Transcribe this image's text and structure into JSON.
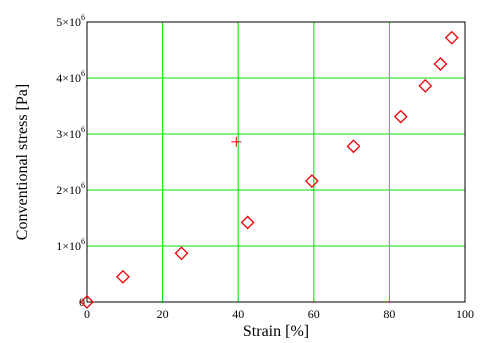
{
  "chart_data": {
    "type": "scatter",
    "title": "",
    "xlabel": "Strain [%]",
    "ylabel": "Conventional stress [Pa]",
    "xlim": [
      0,
      100
    ],
    "ylim": [
      0,
      5000000
    ],
    "x_ticks": [
      {
        "value": 0,
        "label": "0"
      },
      {
        "value": 20,
        "label": "20"
      },
      {
        "value": 40,
        "label": "40"
      },
      {
        "value": 60,
        "label": "60"
      },
      {
        "value": 80,
        "label": "80"
      },
      {
        "value": 100,
        "label": "100"
      }
    ],
    "y_ticks": [
      {
        "value": 0,
        "base": "0",
        "exp": ""
      },
      {
        "value": 1000000,
        "base": "1×10",
        "exp": "6"
      },
      {
        "value": 2000000,
        "base": "2×10",
        "exp": "6"
      },
      {
        "value": 3000000,
        "base": "3×10",
        "exp": "6"
      },
      {
        "value": 4000000,
        "base": "4×10",
        "exp": "6"
      },
      {
        "value": 5000000,
        "base": "5×10",
        "exp": "6"
      }
    ],
    "grid": true,
    "grid_color": "#00dd00",
    "marker_color": "#ee0000",
    "series": [
      {
        "marker": "diamond",
        "points": [
          {
            "x": 0,
            "y": 0
          },
          {
            "x": 9.5,
            "y": 450000
          },
          {
            "x": 25,
            "y": 870000
          },
          {
            "x": 42.5,
            "y": 1420000
          },
          {
            "x": 59.5,
            "y": 2160000
          },
          {
            "x": 70.5,
            "y": 2780000
          },
          {
            "x": 83,
            "y": 3310000
          },
          {
            "x": 89.5,
            "y": 3860000
          },
          {
            "x": 93.5,
            "y": 4250000
          },
          {
            "x": 96.5,
            "y": 4720000
          }
        ]
      },
      {
        "marker": "plus",
        "points": [
          {
            "x": 39.5,
            "y": 2860000
          }
        ]
      }
    ]
  }
}
